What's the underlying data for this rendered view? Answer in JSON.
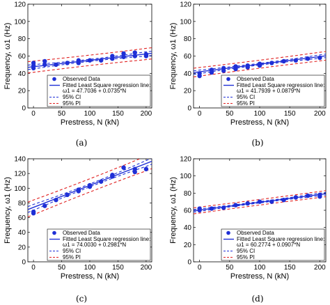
{
  "chart_data": [
    {
      "panel": "(a)",
      "type": "scatter",
      "xlabel": "Prestress, N (kN)",
      "ylabel": "Frequency, ω1 (Hz)",
      "xlim": [
        -10,
        210
      ],
      "ylim": [
        0,
        120
      ],
      "xticks": [
        0,
        50,
        100,
        150,
        200
      ],
      "yticks": [
        0,
        20,
        40,
        60,
        80,
        100,
        120
      ],
      "grid": false,
      "legend_position": "lower-right",
      "series": [
        {
          "name": "Observed Data",
          "kind": "points",
          "x": [
            0,
            0,
            0,
            20,
            20,
            40,
            60,
            80,
            80,
            100,
            120,
            140,
            140,
            160,
            160,
            180,
            180,
            200,
            200
          ],
          "y": [
            52,
            49,
            46,
            54,
            50,
            50,
            52,
            55,
            52,
            55,
            55,
            60,
            57,
            63,
            59,
            64,
            60,
            62,
            60
          ]
        },
        {
          "name": "Fitted Least Square regression line:",
          "equation": "ω1 = 47.7036 + 0.0735*N",
          "kind": "line",
          "intercept": 47.7036,
          "slope": 0.0735
        },
        {
          "name": "95% CI",
          "kind": "band",
          "halfwidth_at_ends": 2.5,
          "halfwidth_at_center": 1.2
        },
        {
          "name": "95% PI",
          "kind": "band",
          "halfwidth_at_ends": 6.5,
          "halfwidth_at_center": 6.0
        }
      ]
    },
    {
      "panel": "(b)",
      "type": "scatter",
      "xlabel": "Prestress, N (kN)",
      "ylabel": "Frequency, ω1 (Hz)",
      "xlim": [
        -10,
        210
      ],
      "ylim": [
        0,
        120
      ],
      "xticks": [
        0,
        50,
        100,
        150,
        200
      ],
      "yticks": [
        0,
        20,
        40,
        60,
        80,
        100,
        120
      ],
      "grid": false,
      "legend_position": "lower-right",
      "series": [
        {
          "name": "Observed Data",
          "kind": "points",
          "x": [
            0,
            0,
            20,
            20,
            40,
            40,
            60,
            60,
            80,
            80,
            100,
            100,
            120,
            140,
            160,
            180,
            200
          ],
          "y": [
            40,
            37,
            44,
            41,
            46,
            43,
            48,
            45,
            49,
            47,
            51,
            49,
            52,
            54,
            55,
            57,
            58
          ]
        },
        {
          "name": "Fitted Least Square regression line:",
          "equation": "ω1 = 41.7939 + 0.0879*N",
          "kind": "line",
          "intercept": 41.7939,
          "slope": 0.0879
        },
        {
          "name": "95% CI",
          "kind": "band",
          "halfwidth_at_ends": 2.0,
          "halfwidth_at_center": 1.0
        },
        {
          "name": "95% PI",
          "kind": "band",
          "halfwidth_at_ends": 5.0,
          "halfwidth_at_center": 4.6
        }
      ]
    },
    {
      "panel": "(c)",
      "type": "scatter",
      "xlabel": "Prestress, N (kN)",
      "ylabel": "Frequency, ω1 (Hz)",
      "xlim": [
        -10,
        210
      ],
      "ylim": [
        0,
        140
      ],
      "xticks": [
        0,
        50,
        100,
        150,
        200
      ],
      "yticks": [
        0,
        20,
        40,
        60,
        80,
        100,
        120,
        140
      ],
      "grid": false,
      "legend_position": "lower-right",
      "series": [
        {
          "name": "Observed Data",
          "kind": "points",
          "x": [
            0,
            0,
            20,
            40,
            60,
            80,
            80,
            100,
            100,
            120,
            140,
            140,
            160,
            180,
            180,
            200
          ],
          "y": [
            68,
            66,
            76,
            84,
            91,
            98,
            96,
            104,
            102,
            109,
            118,
            116,
            128,
            122,
            126,
            126
          ]
        },
        {
          "name": "Fitted Least Square regression line:",
          "equation": "ω1 = 74.0030 + 0.2981*N",
          "kind": "line",
          "intercept": 74.003,
          "slope": 0.2981
        },
        {
          "name": "95% CI",
          "kind": "band",
          "halfwidth_at_ends": 4.0,
          "halfwidth_at_center": 2.0
        },
        {
          "name": "95% PI",
          "kind": "band",
          "halfwidth_at_ends": 10.0,
          "halfwidth_at_center": 9.0
        }
      ]
    },
    {
      "panel": "(d)",
      "type": "scatter",
      "xlabel": "Prestress, N (kN)",
      "ylabel": "Frequency, ω1 (Hz)",
      "xlim": [
        -10,
        210
      ],
      "ylim": [
        0,
        120
      ],
      "xticks": [
        0,
        50,
        100,
        150,
        200
      ],
      "yticks": [
        0,
        20,
        40,
        60,
        80,
        100,
        120
      ],
      "grid": false,
      "legend_position": "lower-right",
      "series": [
        {
          "name": "Observed Data",
          "kind": "points",
          "x": [
            0,
            0,
            20,
            40,
            60,
            80,
            100,
            120,
            140,
            160,
            180,
            200,
            200
          ],
          "y": [
            62,
            60,
            62,
            63,
            66,
            68,
            70,
            70,
            72,
            75,
            77,
            78,
            76
          ]
        },
        {
          "name": "Fitted Least Square regression line:",
          "equation": "ω1 = 60.2774 + 0.0907*N",
          "kind": "line",
          "intercept": 60.2774,
          "slope": 0.0907
        },
        {
          "name": "95% CI",
          "kind": "band",
          "halfwidth_at_ends": 1.5,
          "halfwidth_at_center": 0.8
        },
        {
          "name": "95% PI",
          "kind": "band",
          "halfwidth_at_ends": 3.5,
          "halfwidth_at_center": 3.2
        }
      ]
    }
  ],
  "colors": {
    "points": "#1f2fd6",
    "fit": "#1f2fd6",
    "ci": "#1f2fd6",
    "pi": "#e02020",
    "axis": "#000000"
  }
}
